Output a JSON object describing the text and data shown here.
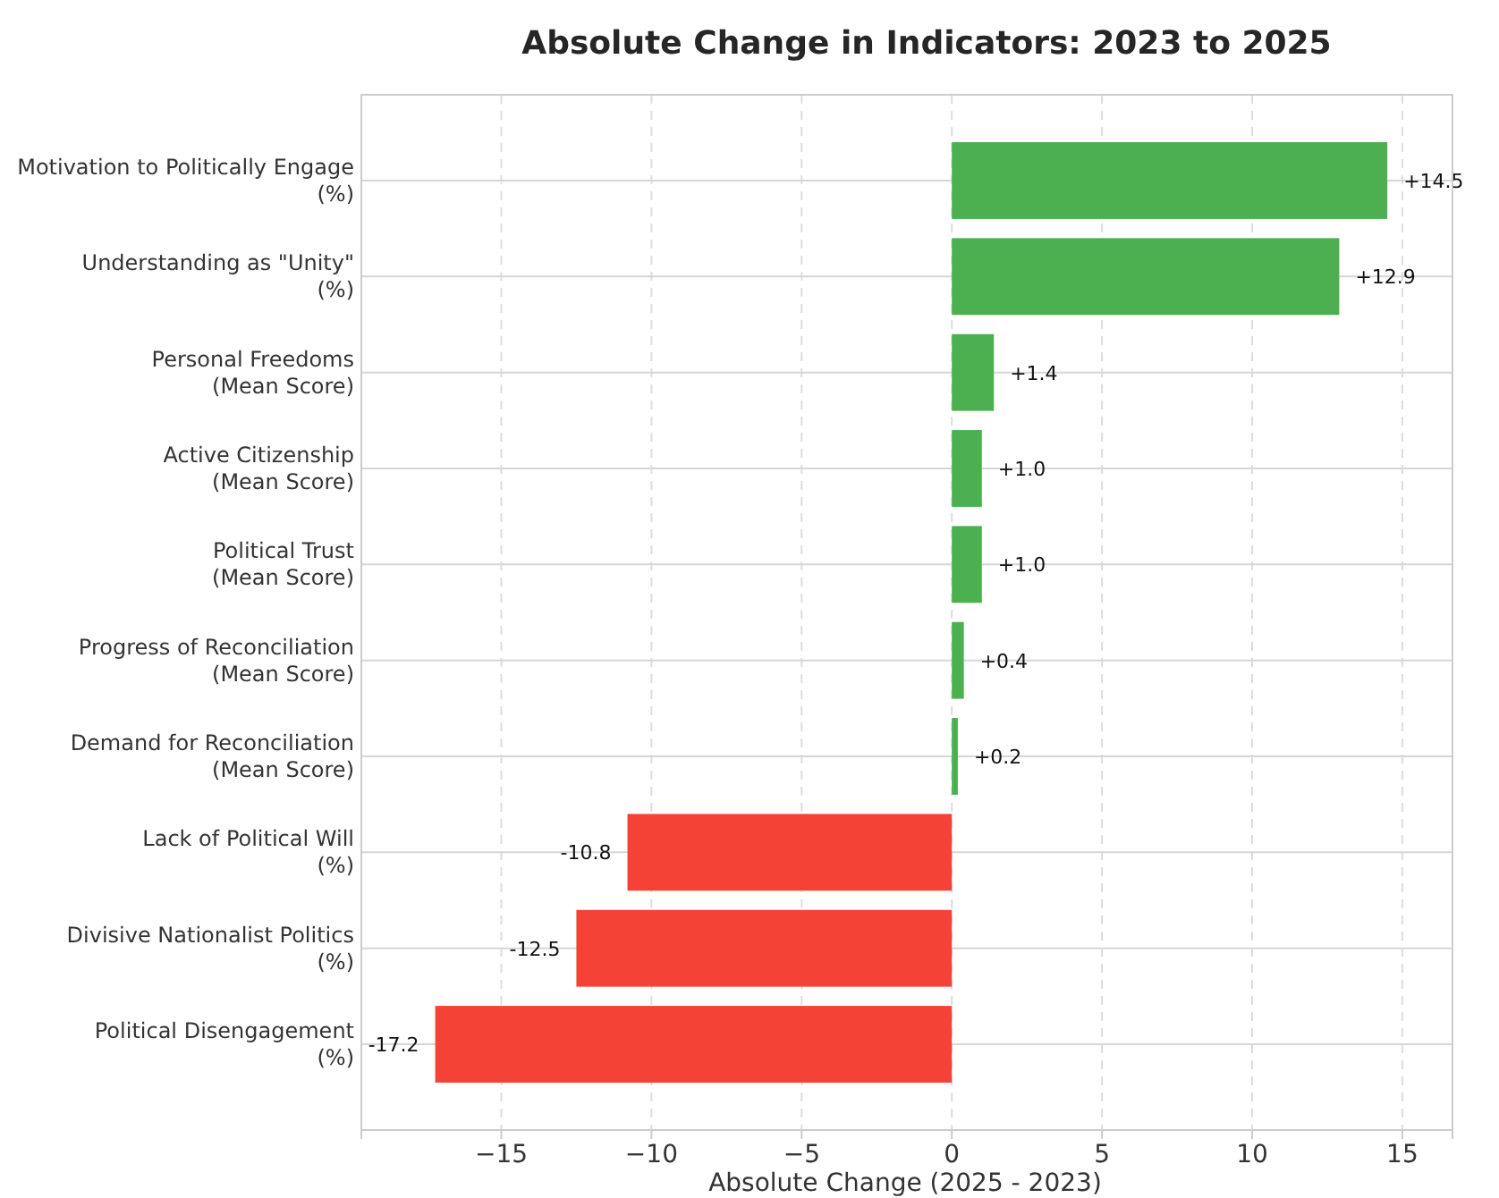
{
  "chart_data": {
    "type": "bar",
    "orientation": "horizontal",
    "title": "Absolute Change in Indicators: 2023 to 2025",
    "xlabel": "Absolute Change (2025 - 2023)",
    "categories": [
      "Motivation to Politically Engage\n(%)",
      "Understanding as \"Unity\"\n(%)",
      "Personal Freedoms\n(Mean Score)",
      "Active Citizenship\n(Mean Score)",
      "Political Trust\n(Mean Score)",
      "Progress of Reconciliation\n(Mean Score)",
      "Demand for Reconciliation\n(Mean Score)",
      "Lack of Political Will\n(%)",
      "Divisive Nationalist Politics\n(%)",
      "Political Disengagement\n(%)"
    ],
    "values": [
      14.5,
      12.9,
      1.4,
      1.0,
      1.0,
      0.4,
      0.2,
      -10.8,
      -12.5,
      -17.2
    ],
    "value_labels": [
      "+14.5",
      "+12.9",
      "+1.4",
      "+1.0",
      "+1.0",
      "+0.4",
      "+0.2",
      "-10.8",
      "-12.5",
      "-17.2"
    ],
    "colors": [
      "#4caf50",
      "#4caf50",
      "#4caf50",
      "#4caf50",
      "#4caf50",
      "#4caf50",
      "#4caf50",
      "#f44336",
      "#f44336",
      "#f44336"
    ],
    "xlim": [
      -19.66,
      16.67
    ],
    "xticks": [
      {
        "value": -15,
        "label": "−15"
      },
      {
        "value": -10,
        "label": "−10"
      },
      {
        "value": -5,
        "label": "−5"
      },
      0,
      5,
      10,
      15
    ],
    "grid": true
  }
}
